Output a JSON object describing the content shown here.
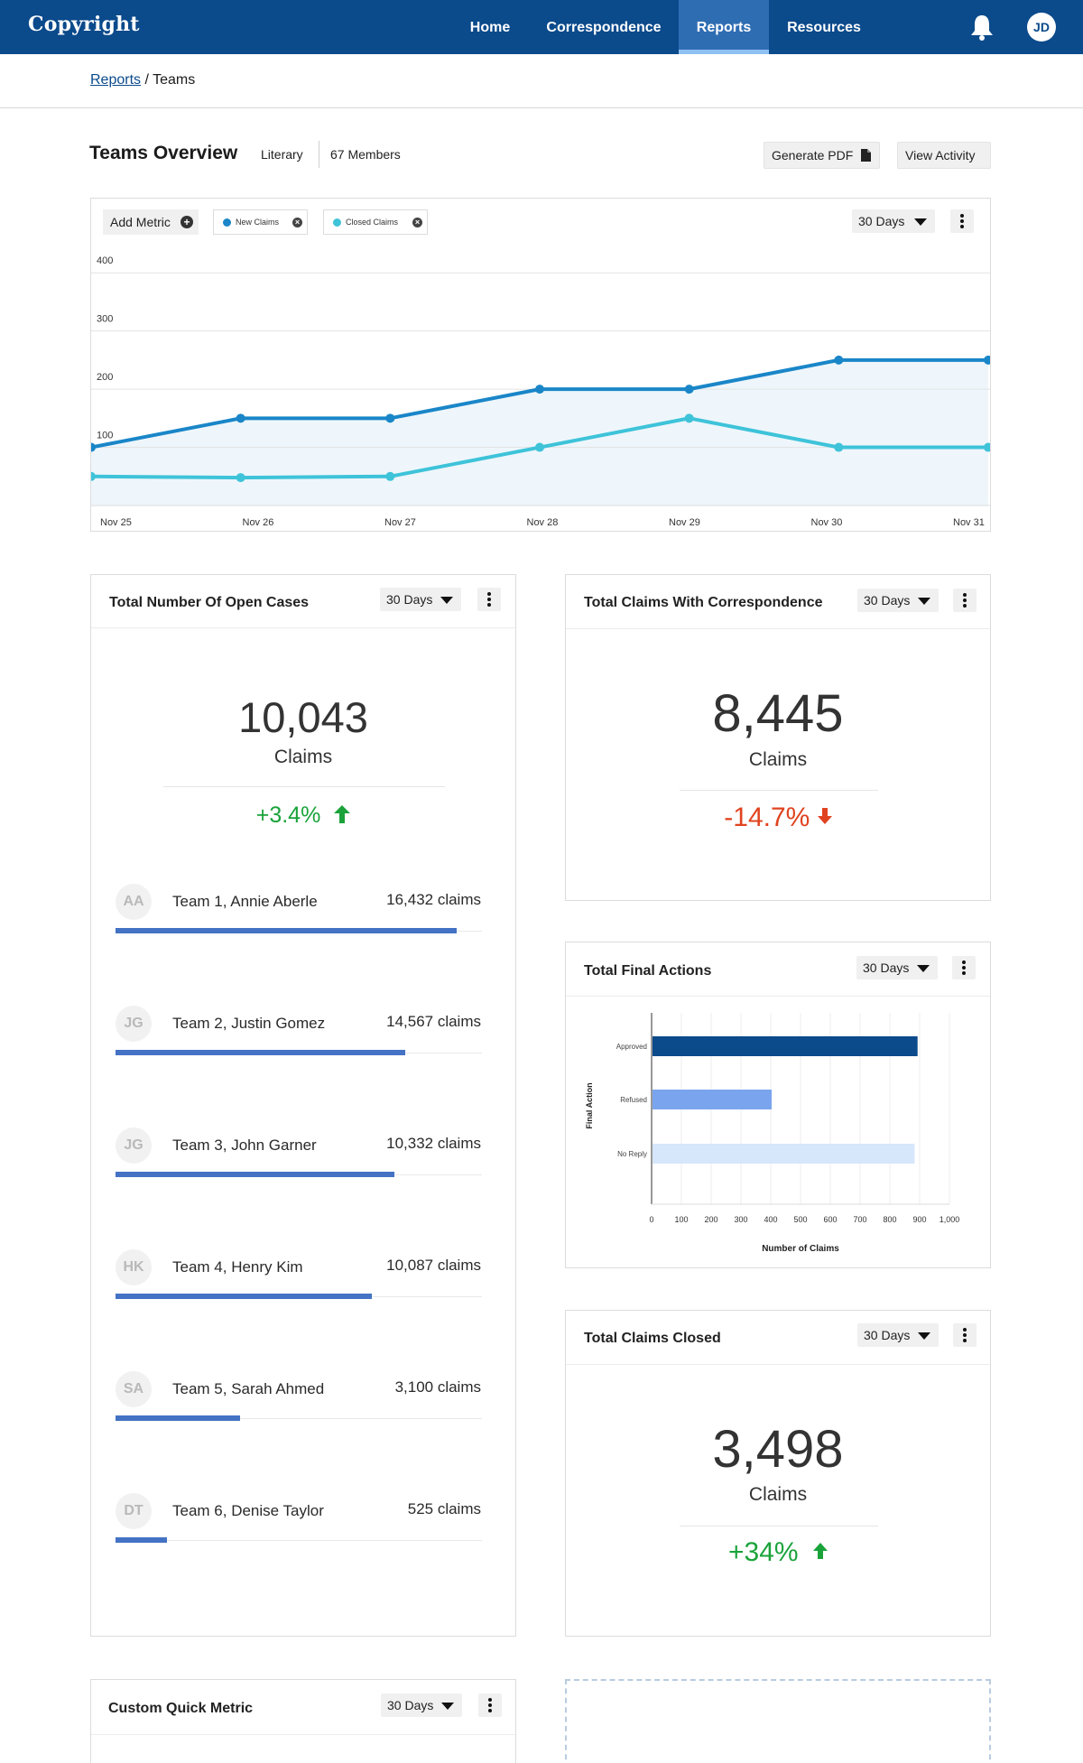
{
  "nav": {
    "logo": "Copyright",
    "links": [
      "Home",
      "Correspondence",
      "Reports",
      "Resources"
    ],
    "active": "Reports",
    "user_initials": "JD"
  },
  "breadcrumb": {
    "parent": "Reports",
    "separator": "/",
    "current": "Teams"
  },
  "header": {
    "title": "Teams Overview",
    "category": "Literary",
    "members": "67 Members",
    "generate_pdf": "Generate PDF",
    "view_activity": "View Activity"
  },
  "trend_card": {
    "add_metric": "Add Metric",
    "chips": [
      {
        "label": "New Claims",
        "color": "#1a86c8"
      },
      {
        "label": "Closed Claims",
        "color": "#3ec3d9"
      }
    ],
    "range": "30 Days"
  },
  "open_cases": {
    "title": "Total Number Of Open Cases",
    "range": "30 Days",
    "value": "10,043",
    "unit": "Claims",
    "delta": "+3.4%",
    "teams": [
      {
        "initials": "AA",
        "name": "Team 1, Annie Aberle",
        "claims": "16,432 claims",
        "share": 0.93
      },
      {
        "initials": "JG",
        "name": "Team 2, Justin Gomez",
        "claims": "14,567 claims",
        "share": 0.79
      },
      {
        "initials": "JG",
        "name": "Team 3, John Garner",
        "claims": "10,332 claims",
        "share": 0.76
      },
      {
        "initials": "HK",
        "name": "Team 4, Henry Kim",
        "claims": "10,087 claims",
        "share": 0.7
      },
      {
        "initials": "SA",
        "name": "Team 5, Sarah Ahmed",
        "claims": "3,100 claims",
        "share": 0.34
      },
      {
        "initials": "DT",
        "name": "Team 6, Denise Taylor",
        "claims": "525 claims",
        "share": 0.14
      }
    ]
  },
  "correspondence": {
    "title": "Total Claims With Correspondence",
    "range": "30 Days",
    "value": "8,445",
    "unit": "Claims",
    "delta": "-14.7%"
  },
  "final_actions": {
    "title": "Total Final Actions",
    "range": "30 Days"
  },
  "claims_closed": {
    "title": "Total Claims Closed",
    "range": "30 Days",
    "value": "3,498",
    "unit": "Claims",
    "delta": "+34%"
  },
  "custom_metric": {
    "title": "Custom Quick Metric",
    "range": "30 Days"
  },
  "chart_data": [
    {
      "type": "line",
      "title": "",
      "xlabel": "",
      "ylabel": "",
      "x": [
        "Nov 25",
        "Nov 26",
        "Nov 27",
        "Nov 28",
        "Nov 29",
        "Nov 30",
        "Nov 31"
      ],
      "yticks": [
        100,
        200,
        300,
        400
      ],
      "ylim": [
        0,
        450
      ],
      "grid": true,
      "series": [
        {
          "name": "New Claims",
          "color": "#1a86c8",
          "values": [
            100,
            150,
            150,
            200,
            200,
            250,
            250
          ]
        },
        {
          "name": "Closed Claims",
          "color": "#3ec3d9",
          "values": [
            50,
            48,
            50,
            100,
            150,
            100,
            100
          ]
        }
      ]
    },
    {
      "type": "bar",
      "orientation": "horizontal",
      "title": "",
      "xlabel": "Number of Claims",
      "ylabel": "Final Action",
      "categories": [
        "Approved",
        "Refused",
        "No Reply"
      ],
      "values": [
        890,
        400,
        880
      ],
      "colors": [
        "#0b4a8b",
        "#7aa5ee",
        "#d6e6fb"
      ],
      "xlim": [
        0,
        1000
      ],
      "xticks": [
        "0",
        "100",
        "200",
        "300",
        "400",
        "500",
        "600",
        "700",
        "800",
        "900",
        "1,000"
      ]
    }
  ]
}
